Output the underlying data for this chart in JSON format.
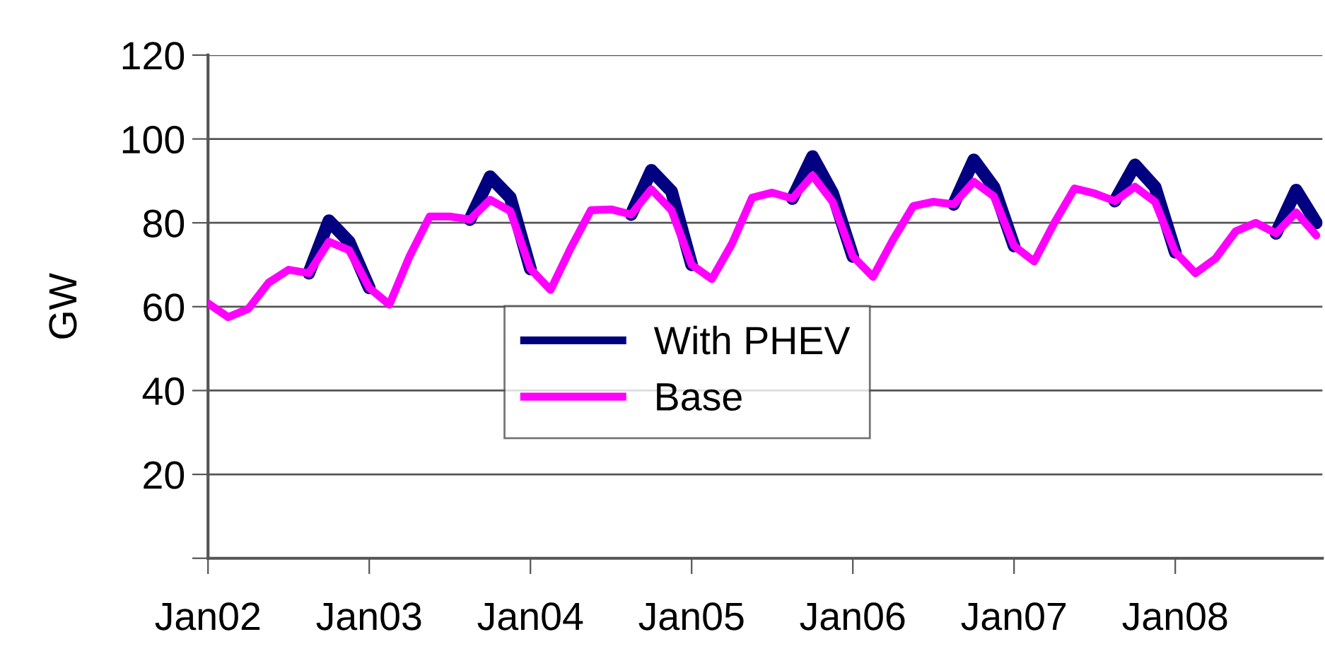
{
  "chart_data": {
    "type": "line",
    "ylabel": "GW",
    "categories": [
      "Jan02",
      null,
      null,
      null,
      null,
      null,
      null,
      null,
      "Jan03",
      null,
      null,
      null,
      null,
      null,
      null,
      null,
      "Jan04",
      null,
      null,
      null,
      null,
      null,
      null,
      null,
      "Jan05",
      null,
      null,
      null,
      null,
      null,
      null,
      null,
      "Jan06",
      null,
      null,
      null,
      null,
      null,
      null,
      null,
      "Jan07",
      null,
      null,
      null,
      null,
      null,
      null,
      null,
      "Jan08",
      null,
      null,
      null,
      null,
      null,
      null,
      null
    ],
    "ylim": [
      0,
      120
    ],
    "yticks": [
      {
        "value": 0,
        "label": null
      },
      20,
      40,
      60,
      80,
      100,
      120
    ],
    "grid": "y",
    "legend": "center",
    "line_style": "solid",
    "marker": "none",
    "series": [
      {
        "name": "With PHEV",
        "color": "#000080",
        "values": [
          null,
          null,
          null,
          null,
          null,
          68.0,
          80.5,
          75.5,
          64.5,
          null,
          null,
          null,
          null,
          80.8,
          91.0,
          86.0,
          69.0,
          null,
          null,
          null,
          null,
          82.0,
          92.5,
          87.5,
          70.0,
          null,
          null,
          null,
          null,
          85.8,
          95.8,
          87.0,
          72.0,
          null,
          null,
          null,
          null,
          84.4,
          95.0,
          88.5,
          74.5,
          null,
          null,
          null,
          null,
          85.2,
          93.8,
          88.5,
          73.0,
          null,
          null,
          null,
          null,
          77.5,
          87.8,
          80.0
        ]
      },
      {
        "name": "Base",
        "color": "#ff00ff",
        "values": [
          60.8,
          57.5,
          59.5,
          65.7,
          68.8,
          68.0,
          75.5,
          73.5,
          64.5,
          60.5,
          72.0,
          81.5,
          81.5,
          80.8,
          85.5,
          82.8,
          69.0,
          64.0,
          74.0,
          83.0,
          83.2,
          82.0,
          88.0,
          83.0,
          70.0,
          66.6,
          75.0,
          86.0,
          87.2,
          85.8,
          91.3,
          85.0,
          72.0,
          67.1,
          76.0,
          84.0,
          85.0,
          84.4,
          89.8,
          86.3,
          74.5,
          70.8,
          80.0,
          88.2,
          87.0,
          85.2,
          88.6,
          85.0,
          73.0,
          68.0,
          71.5,
          78.0,
          80.0,
          77.5,
          82.5,
          77.0
        ]
      }
    ]
  }
}
